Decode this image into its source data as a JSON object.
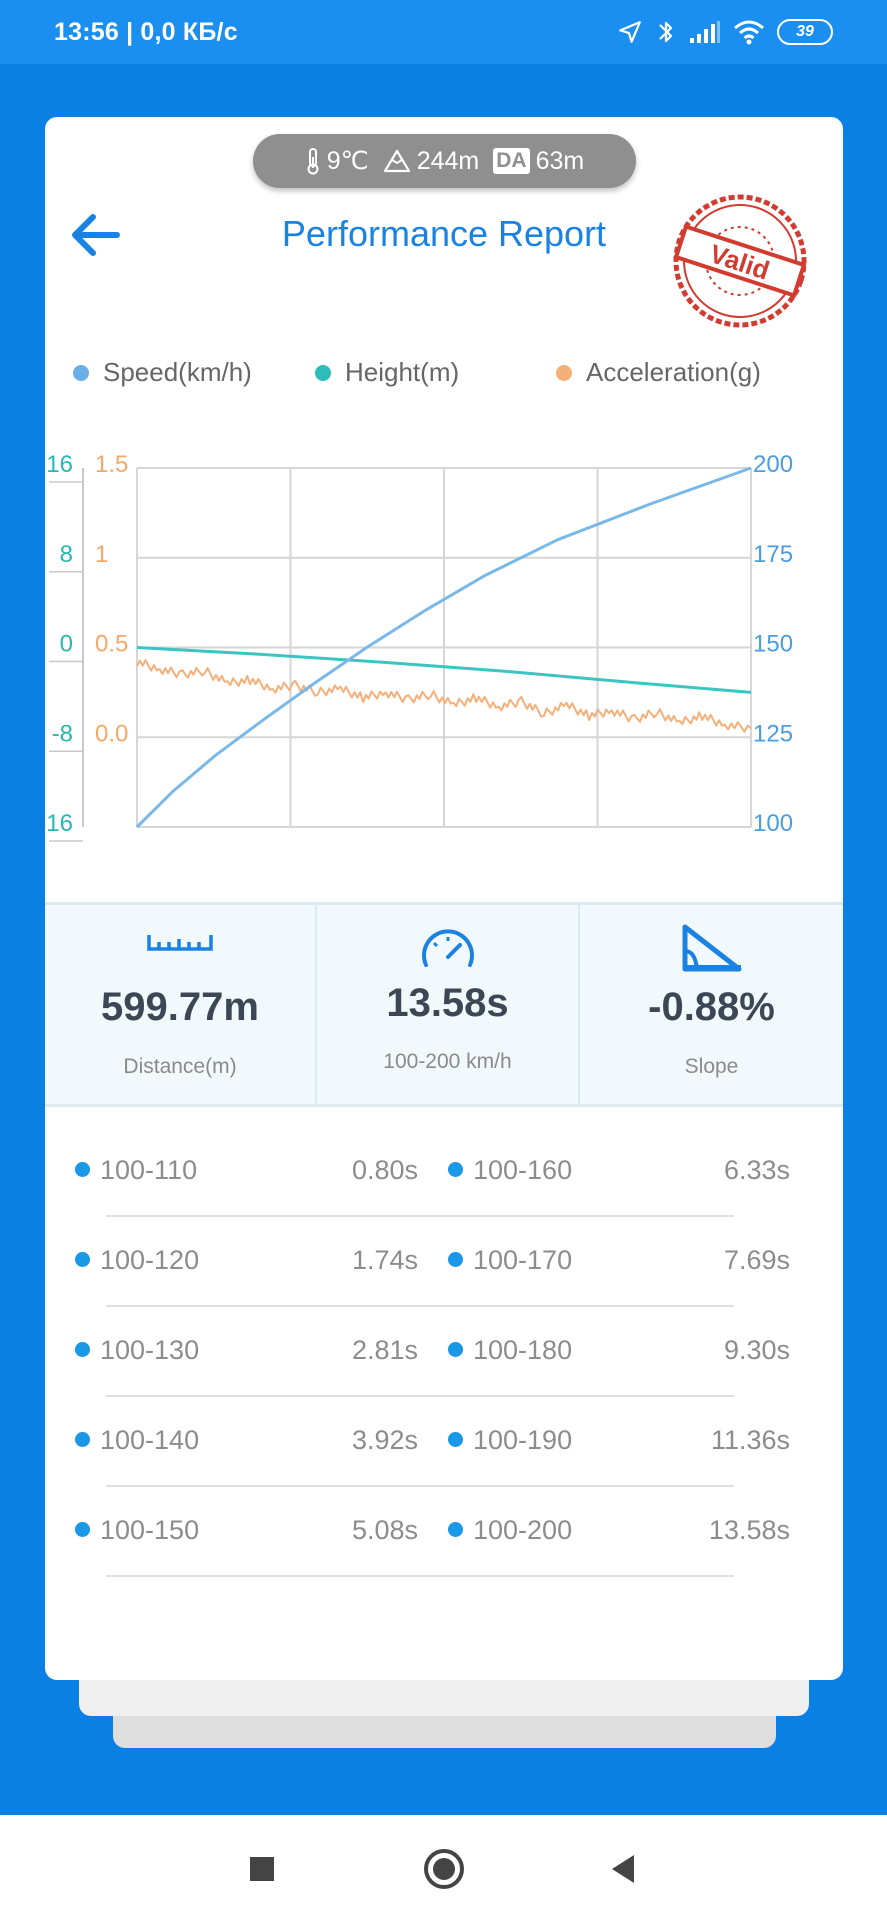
{
  "status_bar": {
    "time_speed": "13:56 | 0,0 КБ/с",
    "battery": "39",
    "icons": [
      "location-icon",
      "bluetooth-icon",
      "signal-icon",
      "wifi-icon",
      "battery-icon"
    ]
  },
  "conditions": {
    "temperature": "9℃",
    "altitude": "244m",
    "da_label": "DA",
    "density_altitude": "63m"
  },
  "header": {
    "title": "Performance Report",
    "stamp_text": "Valid"
  },
  "colors": {
    "accent": "#1a82e2",
    "speed": "#7ab8ea",
    "height": "#3cc4c0",
    "acceleration": "#f5b07a",
    "stamp": "#d23b2f"
  },
  "legend": {
    "speed": "Speed(km/h)",
    "height": "Height(m)",
    "acceleration": "Acceleration(g)"
  },
  "chart_data": {
    "type": "line",
    "grid": true,
    "legend_placement": "top",
    "axes": {
      "height_ticks": [
        "16",
        "8",
        "0",
        "-8",
        "-16"
      ],
      "height_range": [
        -16,
        16
      ],
      "accel_ticks": [
        "1.5",
        "1",
        "0.5",
        "0.0"
      ],
      "accel_range": [
        -0.5,
        1.5
      ],
      "speed_ticks": [
        "200",
        "175",
        "150",
        "125",
        "100"
      ],
      "speed_range": [
        100,
        200
      ],
      "time_range": [
        0,
        13.58
      ]
    },
    "series": [
      {
        "name": "Speed(km/h)",
        "axis": "speed",
        "x": [
          0,
          0.8,
          1.74,
          2.81,
          3.92,
          5.08,
          6.33,
          7.69,
          9.3,
          11.36,
          13.58
        ],
        "values": [
          100,
          110,
          120,
          130,
          140,
          150,
          160,
          170,
          180,
          190,
          200
        ]
      },
      {
        "name": "Height(m)",
        "axis": "height",
        "x": [
          0,
          2.7,
          5.4,
          8.1,
          10.9,
          13.58
        ],
        "values": [
          0,
          -0.6,
          -1.3,
          -2.1,
          -3.1,
          -4.0
        ]
      },
      {
        "name": "Acceleration(g)",
        "axis": "accel",
        "x": [
          0,
          0.5,
          1,
          1.5,
          2,
          2.5,
          3,
          3.5,
          4,
          4.5,
          5,
          5.5,
          6,
          6.5,
          7,
          7.5,
          8,
          8.5,
          9,
          9.5,
          10,
          10.5,
          11,
          11.5,
          12,
          12.5,
          13,
          13.58
        ],
        "values": [
          0.42,
          0.38,
          0.35,
          0.37,
          0.3,
          0.32,
          0.27,
          0.29,
          0.25,
          0.27,
          0.22,
          0.25,
          0.21,
          0.24,
          0.18,
          0.22,
          0.17,
          0.2,
          0.13,
          0.18,
          0.12,
          0.15,
          0.1,
          0.14,
          0.08,
          0.12,
          0.07,
          0.05
        ]
      }
    ]
  },
  "stats": [
    {
      "icon": "ruler-icon",
      "value": "599.77m",
      "label": "Distance(m)"
    },
    {
      "icon": "speedometer-icon",
      "value": "13.58s",
      "label": "100-200 km/h"
    },
    {
      "icon": "slope-icon",
      "value": "-0.88%",
      "label": "Slope"
    }
  ],
  "splits": [
    {
      "left_range": "100-110",
      "left_time": "0.80s",
      "right_range": "100-160",
      "right_time": "6.33s"
    },
    {
      "left_range": "100-120",
      "left_time": "1.74s",
      "right_range": "100-170",
      "right_time": "7.69s"
    },
    {
      "left_range": "100-130",
      "left_time": "2.81s",
      "right_range": "100-180",
      "right_time": "9.30s"
    },
    {
      "left_range": "100-140",
      "left_time": "3.92s",
      "right_range": "100-190",
      "right_time": "11.36s"
    },
    {
      "left_range": "100-150",
      "left_time": "5.08s",
      "right_range": "100-200",
      "right_time": "13.58s"
    }
  ],
  "nav": {
    "recents": "square-icon",
    "home": "circle-icon",
    "back": "triangle-back-icon"
  }
}
